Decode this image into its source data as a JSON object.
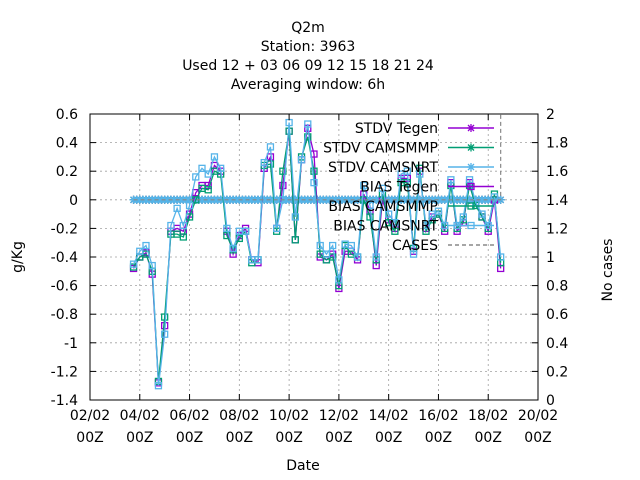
{
  "chart_data": {
    "type": "line",
    "title": [
      "Q2m",
      "Station:     3963",
      "Used  12 + 03 06 09 12 15 18 21 24",
      "Averaging window:  6h"
    ],
    "xlabel": "Date",
    "ylabel": "g/Kg",
    "y2label": "No cases",
    "xlim": [
      0,
      18
    ],
    "ylim": [
      -1.4,
      0.6
    ],
    "y2lim": [
      0,
      2
    ],
    "x_ticks": [
      {
        "x": 0,
        "label": [
          "02/02",
          "00Z"
        ]
      },
      {
        "x": 2,
        "label": [
          "04/02",
          "00Z"
        ]
      },
      {
        "x": 4,
        "label": [
          "06/02",
          "00Z"
        ]
      },
      {
        "x": 6,
        "label": [
          "08/02",
          "00Z"
        ]
      },
      {
        "x": 8,
        "label": [
          "10/02",
          "00Z"
        ]
      },
      {
        "x": 10,
        "label": [
          "12/02",
          "00Z"
        ]
      },
      {
        "x": 12,
        "label": [
          "14/02",
          "00Z"
        ]
      },
      {
        "x": 14,
        "label": [
          "16/02",
          "00Z"
        ]
      },
      {
        "x": 16,
        "label": [
          "18/02",
          "00Z"
        ]
      },
      {
        "x": 18,
        "label": [
          "20/02",
          "00Z"
        ]
      }
    ],
    "y_ticks": [
      "-1.4",
      "-1.2",
      "-1",
      "-0.8",
      "-0.6",
      "-0.4",
      "-0.2",
      "0",
      "0.2",
      "0.4",
      "0.6"
    ],
    "y2_ticks": [
      "0",
      "0.2",
      "0.4",
      "0.6",
      "0.8",
      "1",
      "1.2",
      "1.4",
      "1.6",
      "1.8",
      "2"
    ],
    "grid": true,
    "legend_position": "top-right",
    "series": [
      {
        "name": "STDV Tegen",
        "color": "#9400d3",
        "marker": "star",
        "axis": "y2",
        "const_y2": 1.4,
        "x_range": [
          1.75,
          16.5
        ]
      },
      {
        "name": "STDV CAMSMMP",
        "color": "#009e73",
        "marker": "star",
        "axis": "y2",
        "const_y2": 1.4,
        "x_range": [
          1.75,
          16.5
        ]
      },
      {
        "name": "STDV CAMSNRT",
        "color": "#56b4e9",
        "marker": "star",
        "axis": "y2",
        "const_y2": 1.4,
        "x_range": [
          1.75,
          16.5
        ]
      },
      {
        "name": "BIAS Tegen",
        "color": "#9400d3",
        "marker": "square",
        "axis": "y",
        "x": [
          1.75,
          2.0,
          2.25,
          2.5,
          2.75,
          3.0,
          3.25,
          3.5,
          3.75,
          4.0,
          4.25,
          4.5,
          4.75,
          5.0,
          5.25,
          5.5,
          5.75,
          6.0,
          6.25,
          6.5,
          6.75,
          7.0,
          7.25,
          7.5,
          7.75,
          8.0,
          8.25,
          8.5,
          8.75,
          9.0,
          9.25,
          9.5,
          9.75,
          10.0,
          10.25,
          10.5,
          10.75,
          11.0,
          11.25,
          11.5,
          11.75,
          12.0,
          12.25,
          12.5,
          12.75,
          13.0,
          13.25,
          13.5,
          13.75,
          14.0,
          14.25,
          14.5,
          14.75,
          15.0,
          15.25,
          15.5,
          15.75,
          16.0,
          16.25,
          16.5
        ],
        "values": [
          -0.48,
          -0.4,
          -0.37,
          -0.52,
          -1.28,
          -0.88,
          -0.22,
          -0.2,
          -0.22,
          -0.1,
          0.05,
          0.1,
          0.1,
          0.24,
          0.2,
          -0.22,
          -0.38,
          -0.25,
          -0.2,
          -0.42,
          -0.44,
          0.22,
          0.3,
          -0.2,
          0.1,
          0.48,
          -0.28,
          0.28,
          0.5,
          0.32,
          -0.4,
          -0.42,
          -0.38,
          -0.62,
          -0.36,
          -0.36,
          -0.42,
          0.04,
          -0.08,
          -0.46,
          0.0,
          -0.14,
          -0.2,
          0.15,
          0.15,
          -0.36,
          0.2,
          -0.2,
          -0.12,
          -0.1,
          -0.22,
          0.12,
          -0.22,
          -0.16,
          0.12,
          -0.02,
          -0.12,
          -0.22,
          0.0,
          -0.48
        ]
      },
      {
        "name": "BIAS CAMSMMP",
        "color": "#009e73",
        "marker": "square",
        "axis": "y",
        "x": [
          1.75,
          2.0,
          2.25,
          2.5,
          2.75,
          3.0,
          3.25,
          3.5,
          3.75,
          4.0,
          4.25,
          4.5,
          4.75,
          5.0,
          5.25,
          5.5,
          5.75,
          6.0,
          6.25,
          6.5,
          6.75,
          7.0,
          7.25,
          7.5,
          7.75,
          8.0,
          8.25,
          8.5,
          8.75,
          9.0,
          9.25,
          9.5,
          9.75,
          10.0,
          10.25,
          10.5,
          10.75,
          11.0,
          11.25,
          11.5,
          11.75,
          12.0,
          12.25,
          12.5,
          12.75,
          13.0,
          13.25,
          13.5,
          13.75,
          14.0,
          14.25,
          14.5,
          14.75,
          15.0,
          15.25,
          15.5,
          15.75,
          16.0,
          16.25,
          16.5
        ],
        "values": [
          -0.47,
          -0.4,
          -0.38,
          -0.5,
          -1.27,
          -0.82,
          -0.24,
          -0.24,
          -0.26,
          -0.12,
          0.0,
          0.08,
          0.07,
          0.2,
          0.18,
          -0.25,
          -0.35,
          -0.27,
          -0.22,
          -0.44,
          -0.42,
          0.24,
          0.25,
          -0.22,
          0.2,
          0.48,
          -0.28,
          0.3,
          0.44,
          0.2,
          -0.38,
          -0.42,
          -0.4,
          -0.6,
          -0.32,
          -0.38,
          -0.4,
          0.0,
          -0.12,
          -0.42,
          0.04,
          -0.16,
          -0.22,
          0.12,
          0.12,
          -0.34,
          0.22,
          -0.22,
          -0.14,
          -0.1,
          -0.2,
          0.1,
          -0.2,
          -0.14,
          0.1,
          -0.04,
          -0.12,
          -0.2,
          0.04,
          -0.44
        ]
      },
      {
        "name": "BIAS CAMSNRT",
        "color": "#56b4e9",
        "marker": "square",
        "axis": "y",
        "x": [
          1.75,
          2.0,
          2.25,
          2.5,
          2.75,
          3.0,
          3.25,
          3.5,
          3.75,
          4.0,
          4.25,
          4.5,
          4.75,
          5.0,
          5.25,
          5.5,
          5.75,
          6.0,
          6.25,
          6.5,
          6.75,
          7.0,
          7.25,
          7.5,
          7.75,
          8.0,
          8.25,
          8.5,
          8.75,
          9.0,
          9.25,
          9.5,
          9.75,
          10.0,
          10.25,
          10.5,
          10.75,
          11.0,
          11.25,
          11.5,
          11.75,
          12.0,
          12.25,
          12.5,
          12.75,
          13.0,
          13.25,
          13.5,
          13.75,
          14.0,
          14.25,
          14.5,
          14.75,
          15.0,
          15.25,
          15.5,
          15.75,
          16.0,
          16.25,
          16.5
        ],
        "values": [
          -0.45,
          -0.36,
          -0.32,
          -0.46,
          -1.3,
          -0.94,
          -0.18,
          -0.06,
          -0.18,
          -0.04,
          0.16,
          0.22,
          0.18,
          0.3,
          0.22,
          -0.2,
          -0.34,
          -0.22,
          -0.22,
          -0.42,
          -0.42,
          0.26,
          0.37,
          -0.2,
          0.0,
          0.54,
          -0.12,
          0.28,
          0.53,
          0.12,
          -0.32,
          -0.38,
          -0.32,
          -0.56,
          -0.31,
          -0.32,
          -0.4,
          0.1,
          -0.04,
          -0.4,
          0.08,
          -0.1,
          -0.16,
          0.18,
          0.2,
          -0.38,
          0.18,
          -0.18,
          -0.1,
          -0.08,
          -0.18,
          0.14,
          -0.18,
          -0.12,
          0.14,
          -0.02,
          -0.1,
          -0.18,
          0.02,
          -0.4
        ]
      },
      {
        "name": "CASES",
        "color": "#888888",
        "marker": "none",
        "axis": "y2",
        "dashed": true,
        "points": [
          [
            1.75,
            1.4
          ],
          [
            16.5,
            1.4
          ],
          [
            16.5,
            2.0
          ]
        ]
      }
    ]
  }
}
